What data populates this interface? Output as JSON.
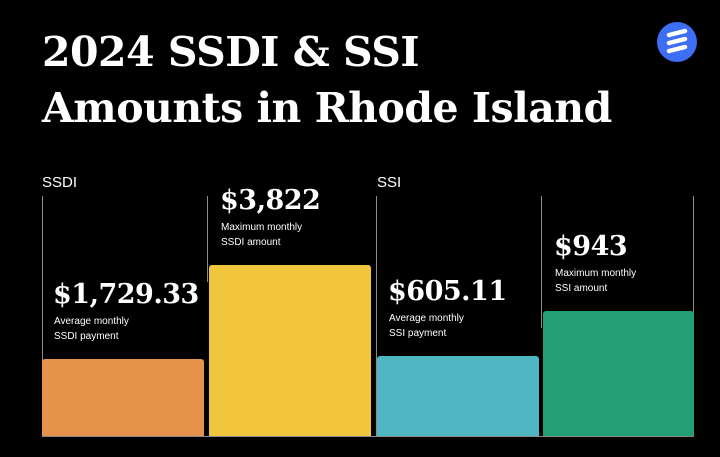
{
  "title": {
    "line1": "2024 SSDI & SSI",
    "line2": "Amounts in Rhode Island"
  },
  "logo": {
    "icon": "stacked-lines-logo-icon",
    "color": "#3d6ff5"
  },
  "chart_data": {
    "type": "bar",
    "groups": [
      {
        "label": "SSDI",
        "categories": [
          0,
          1
        ]
      },
      {
        "label": "SSI",
        "categories": [
          2,
          3
        ]
      }
    ],
    "categories": [
      {
        "value_label": "$1,729.33",
        "desc_line1": "Average monthly",
        "desc_line2": "SSDI payment"
      },
      {
        "value_label": "$3,822",
        "desc_line1": "Maximum monthly",
        "desc_line2": "SSDI amount"
      },
      {
        "value_label": "$605.11",
        "desc_line1": "Average monthly",
        "desc_line2": "SSI payment"
      },
      {
        "value_label": "$943",
        "desc_line1": "Maximum monthly",
        "desc_line2": "SSI amount"
      }
    ],
    "values": [
      1729.33,
      3822,
      605.11,
      943
    ],
    "colors": [
      "#e5924a",
      "#f1c53c",
      "#4fb6c3",
      "#239f76"
    ],
    "grid": false,
    "legend": "none"
  }
}
